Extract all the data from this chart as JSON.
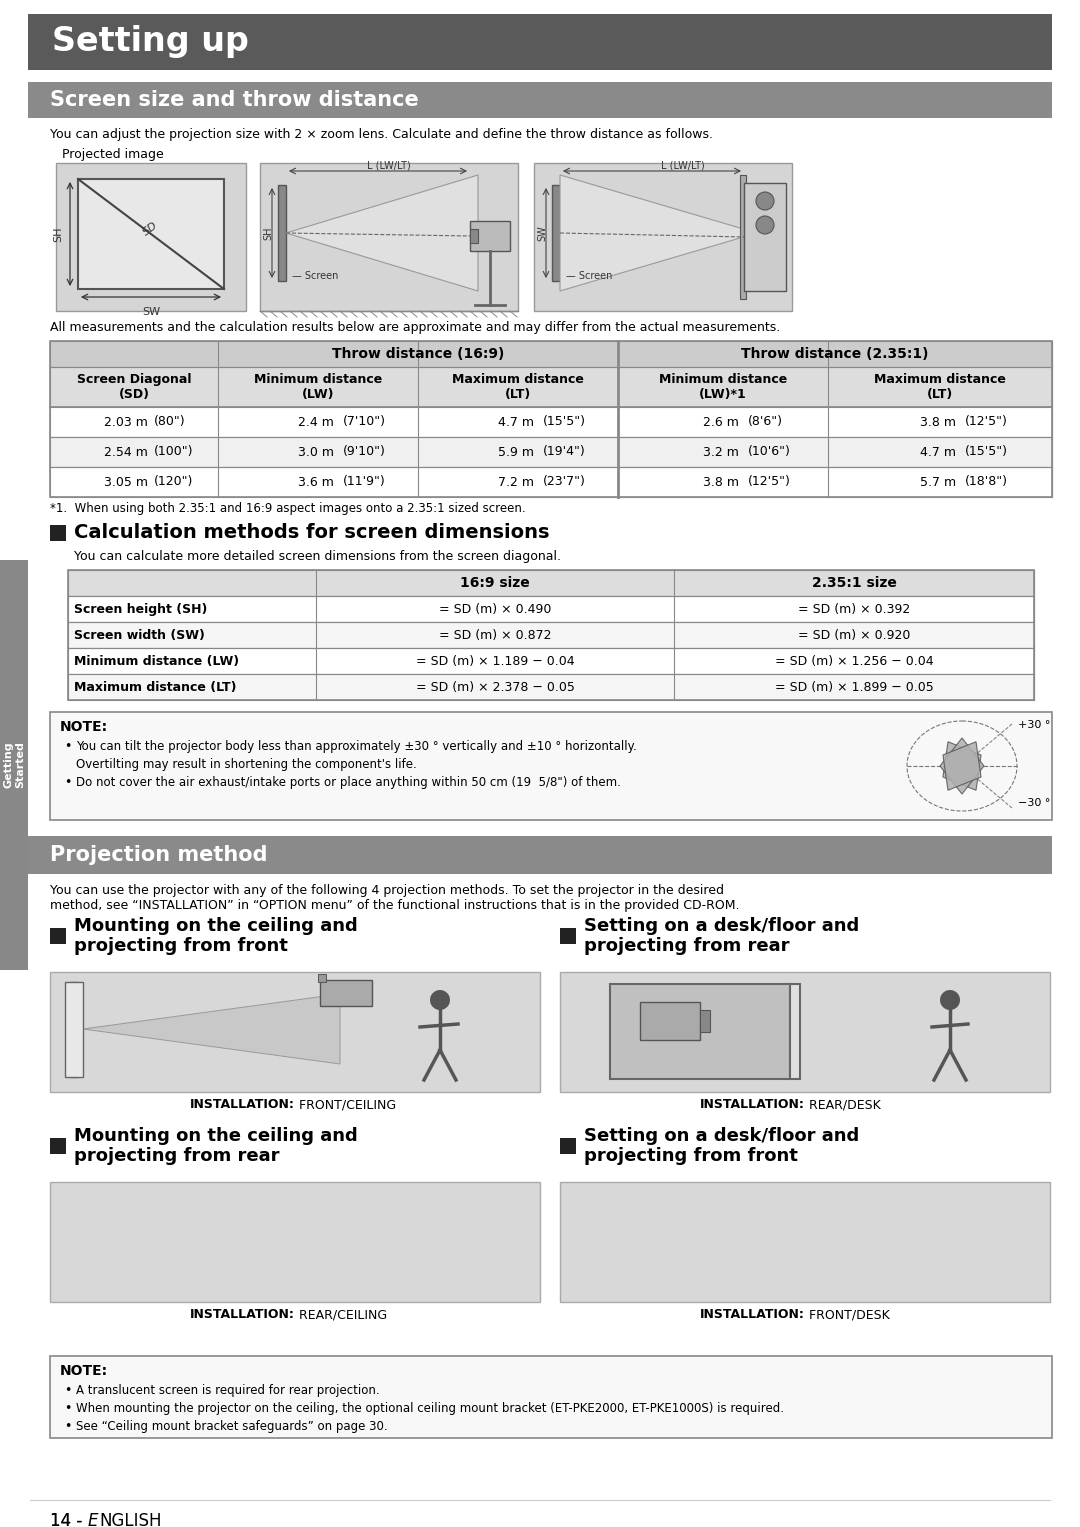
{
  "page_bg": "#ffffff",
  "main_title": "Setting up",
  "main_title_bg": "#5a5a5a",
  "main_title_color": "#ffffff",
  "section1_title": "Screen size and throw distance",
  "section1_title_bg": "#8a8a8a",
  "section1_title_color": "#ffffff",
  "intro_text": "You can adjust the projection size with 2 × zoom lens. Calculate and define the throw distance as follows.",
  "projected_image_label": "Projected image",
  "all_measurements_text": "All measurements and the calculation results below are approximate and may differ from the actual measurements.",
  "throw_table_header1_16": "Throw distance (16:9)",
  "throw_table_header1_235": "Throw distance (2.35:1)",
  "throw_table_headers": [
    "Screen Diagonal\n(SD)",
    "Minimum distance\n(LW)",
    "Maximum distance\n(LT)",
    "Minimum distance\n(LW)*1",
    "Maximum distance\n(LT)"
  ],
  "throw_table_rows": [
    [
      "2.03 m",
      "(80\")",
      "2.4 m",
      "(7'10\")",
      "4.7 m",
      "(15'5\")",
      "2.6 m",
      "(8'6\")",
      "3.8 m",
      "(12'5\")"
    ],
    [
      "2.54 m",
      "(100\")",
      "3.0 m",
      "(9'10\")",
      "5.9 m",
      "(19'4\")",
      "3.2 m",
      "(10'6\")",
      "4.7 m",
      "(15'5\")"
    ],
    [
      "3.05 m",
      "(120\")",
      "3.6 m",
      "(11'9\")",
      "7.2 m",
      "(23'7\")",
      "3.8 m",
      "(12'5\")",
      "5.7 m",
      "(18'8\")"
    ]
  ],
  "throw_footnote": "*1.  When using both 2.35:1 and 16:9 aspect images onto a 2.35:1 sized screen.",
  "calc_title": "Calculation methods for screen dimensions",
  "calc_intro": "You can calculate more detailed screen dimensions from the screen diagonal.",
  "calc_headers": [
    "",
    "16:9 size",
    "2.35:1 size"
  ],
  "calc_rows": [
    [
      "Screen height (SH)",
      "= SD (m) × 0.490",
      "= SD (m) × 0.392"
    ],
    [
      "Screen width (SW)",
      "= SD (m) × 0.872",
      "= SD (m) × 0.920"
    ],
    [
      "Minimum distance (LW)",
      "= SD (m) × 1.189 − 0.04",
      "= SD (m) × 1.256 − 0.04"
    ],
    [
      "Maximum distance (LT)",
      "= SD (m) × 2.378 − 0.05",
      "= SD (m) × 1.899 − 0.05"
    ]
  ],
  "note1_title": "NOTE:",
  "note1_lines": [
    "You can tilt the projector body less than approximately ±30 ° vertically and ±10 ° horizontally.",
    "Overtilting may result in shortening the component's life.",
    "Do not cover the air exhaust/intake ports or place anything within 50 cm (19  5/8\") of them."
  ],
  "section2_title": "Projection method",
  "section2_title_bg": "#8a8a8a",
  "section2_title_color": "#ffffff",
  "proj_intro": "You can use the projector with any of the following 4 projection methods. To set the projector in the desired\nmethod, see “INSTALLATION” in “OPTION menu” of the functional instructions that is in the provided CD-ROM.",
  "proj_methods": [
    {
      "title": "Mounting on the ceiling and\nprojecting from front",
      "install_bold": "INSTALLATION:",
      "install_plain": " FRONT/CEILING"
    },
    {
      "title": "Setting on a desk/floor and\nprojecting from rear",
      "install_bold": "INSTALLATION:",
      "install_plain": " REAR/DESK"
    },
    {
      "title": "Mounting on the ceiling and\nprojecting from rear",
      "install_bold": "INSTALLATION:",
      "install_plain": " REAR/CEILING"
    },
    {
      "title": "Setting on a desk/floor and\nprojecting from front",
      "install_bold": "INSTALLATION:",
      "install_plain": " FRONT/DESK"
    }
  ],
  "note2_title": "NOTE:",
  "note2_lines": [
    "A translucent screen is required for rear projection.",
    "When mounting the projector on the ceiling, the optional ceiling mount bracket (ET-PKE2000, ET-PKE1000S) is required.",
    "See “Ceiling mount bracket safeguards” on page 30."
  ],
  "footer": "14 - ",
  "footer_italic": "E",
  "footer_rest": "NGLISH",
  "sidebar_text": "Getting\nStarted",
  "sidebar_bg": "#888888"
}
